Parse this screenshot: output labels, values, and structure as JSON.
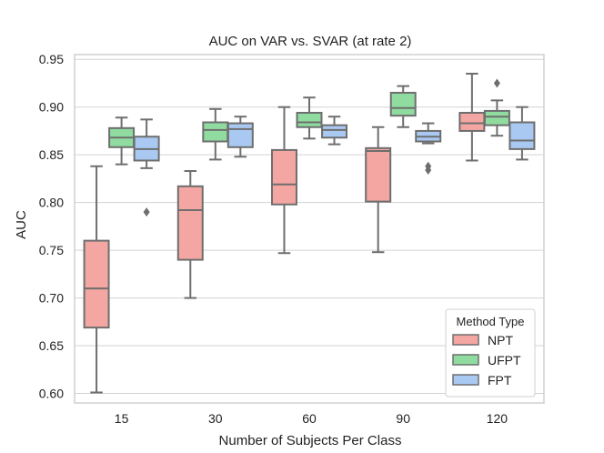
{
  "chart_data": {
    "type": "boxplot",
    "title": "AUC on VAR vs. SVAR (at rate 2)",
    "xlabel": "Number of Subjects Per Class",
    "ylabel": "AUC",
    "ylim": [
      0.59,
      0.955
    ],
    "yticks": [
      0.6,
      0.65,
      0.7,
      0.75,
      0.8,
      0.85,
      0.9,
      0.95
    ],
    "ytick_labels": [
      "0.60",
      "0.65",
      "0.70",
      "0.75",
      "0.80",
      "0.85",
      "0.90",
      "0.95"
    ],
    "categories": [
      "15",
      "30",
      "60",
      "90",
      "120"
    ],
    "grid": true,
    "legend": {
      "title": "Method Type",
      "position": "lower-right"
    },
    "series": [
      {
        "name": "NPT",
        "color": "#f4a6a2",
        "boxes": [
          {
            "whislo": 0.601,
            "q1": 0.669,
            "med": 0.71,
            "q3": 0.76,
            "whishi": 0.838,
            "fliers": []
          },
          {
            "whislo": 0.7,
            "q1": 0.74,
            "med": 0.792,
            "q3": 0.817,
            "whishi": 0.833,
            "fliers": []
          },
          {
            "whislo": 0.747,
            "q1": 0.798,
            "med": 0.819,
            "q3": 0.855,
            "whishi": 0.9,
            "fliers": []
          },
          {
            "whislo": 0.748,
            "q1": 0.801,
            "med": 0.854,
            "q3": 0.857,
            "whishi": 0.879,
            "fliers": []
          },
          {
            "whislo": 0.844,
            "q1": 0.875,
            "med": 0.883,
            "q3": 0.894,
            "whishi": 0.935,
            "fliers": []
          }
        ]
      },
      {
        "name": "UFPT",
        "color": "#90dca0",
        "boxes": [
          {
            "whislo": 0.84,
            "q1": 0.858,
            "med": 0.868,
            "q3": 0.878,
            "whishi": 0.889,
            "fliers": []
          },
          {
            "whislo": 0.845,
            "q1": 0.864,
            "med": 0.876,
            "q3": 0.884,
            "whishi": 0.898,
            "fliers": []
          },
          {
            "whislo": 0.867,
            "q1": 0.879,
            "med": 0.884,
            "q3": 0.894,
            "whishi": 0.91,
            "fliers": []
          },
          {
            "whislo": 0.879,
            "q1": 0.891,
            "med": 0.899,
            "q3": 0.915,
            "whishi": 0.922,
            "fliers": []
          },
          {
            "whislo": 0.87,
            "q1": 0.881,
            "med": 0.89,
            "q3": 0.896,
            "whishi": 0.907,
            "fliers": [
              0.925
            ]
          }
        ]
      },
      {
        "name": "FPT",
        "color": "#a9c9f2",
        "boxes": [
          {
            "whislo": 0.836,
            "q1": 0.844,
            "med": 0.856,
            "q3": 0.869,
            "whishi": 0.887,
            "fliers": [
              0.79
            ]
          },
          {
            "whislo": 0.848,
            "q1": 0.858,
            "med": 0.877,
            "q3": 0.883,
            "whishi": 0.89,
            "fliers": []
          },
          {
            "whislo": 0.861,
            "q1": 0.868,
            "med": 0.876,
            "q3": 0.881,
            "whishi": 0.89,
            "fliers": []
          },
          {
            "whislo": 0.862,
            "q1": 0.864,
            "med": 0.869,
            "q3": 0.875,
            "whishi": 0.883,
            "fliers": [
              0.838,
              0.834
            ]
          },
          {
            "whislo": 0.845,
            "q1": 0.856,
            "med": 0.865,
            "q3": 0.884,
            "whishi": 0.9,
            "fliers": []
          }
        ]
      }
    ]
  }
}
